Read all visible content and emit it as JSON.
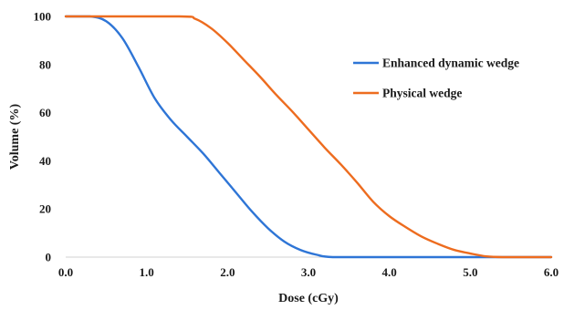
{
  "chart_data": {
    "type": "line",
    "title": "",
    "xlabel": "Dose (cGy)",
    "ylabel": "Volume (%)",
    "xlim": [
      0,
      6
    ],
    "ylim": [
      0,
      100
    ],
    "x_ticks": [
      "0.0",
      "1.0",
      "2.0",
      "3.0",
      "4.0",
      "5.0",
      "6.0"
    ],
    "y_ticks": [
      "0",
      "20",
      "40",
      "60",
      "80",
      "100"
    ],
    "grid": false,
    "legend_position": "top-right",
    "series": [
      {
        "name": "Enhanced dynamic wedge",
        "color": "#2e75d6",
        "points": [
          [
            0.0,
            100
          ],
          [
            0.3,
            100
          ],
          [
            0.5,
            98
          ],
          [
            0.7,
            91
          ],
          [
            0.9,
            79
          ],
          [
            1.1,
            66
          ],
          [
            1.3,
            57
          ],
          [
            1.5,
            50
          ],
          [
            1.7,
            43
          ],
          [
            1.9,
            35
          ],
          [
            2.1,
            27
          ],
          [
            2.3,
            19
          ],
          [
            2.5,
            12
          ],
          [
            2.7,
            6.5
          ],
          [
            2.9,
            3
          ],
          [
            3.1,
            1
          ],
          [
            3.3,
            0
          ],
          [
            4.0,
            0
          ],
          [
            5.0,
            0
          ],
          [
            6.0,
            0
          ]
        ]
      },
      {
        "name": "Physical wedge",
        "color": "#ed6c1f",
        "points": [
          [
            0.0,
            100
          ],
          [
            1.4,
            100
          ],
          [
            1.6,
            99
          ],
          [
            1.8,
            95
          ],
          [
            2.0,
            89
          ],
          [
            2.2,
            82
          ],
          [
            2.4,
            75
          ],
          [
            2.6,
            67.5
          ],
          [
            2.8,
            60.5
          ],
          [
            3.0,
            53
          ],
          [
            3.2,
            45.5
          ],
          [
            3.4,
            38.5
          ],
          [
            3.6,
            31
          ],
          [
            3.8,
            23
          ],
          [
            4.0,
            17
          ],
          [
            4.2,
            12.5
          ],
          [
            4.4,
            8.5
          ],
          [
            4.6,
            5.5
          ],
          [
            4.8,
            3
          ],
          [
            5.0,
            1.5
          ],
          [
            5.2,
            0.3
          ],
          [
            5.4,
            0
          ],
          [
            6.0,
            0
          ]
        ]
      }
    ]
  }
}
